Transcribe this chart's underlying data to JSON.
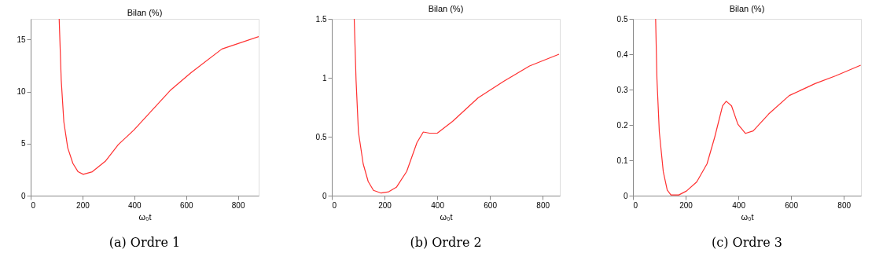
{
  "chart_data": [
    {
      "type": "line",
      "title": "Bilan (%)",
      "xlabel": "ω₀t",
      "color": "#ff3030",
      "xlim": [
        0,
        880
      ],
      "ylim": [
        0,
        17
      ],
      "xticks": [
        0,
        200,
        400,
        600,
        800
      ],
      "yticks": [
        0,
        5,
        10,
        15
      ],
      "annotations": [
        "(a) Ordre 1"
      ],
      "x": [
        110,
        118,
        128,
        143,
        163,
        183,
        203,
        238,
        288,
        338,
        398,
        538,
        618,
        738,
        880
      ],
      "values": [
        17,
        11.1,
        7.1,
        4.6,
        3.1,
        2.3,
        2.05,
        2.3,
        3.3,
        4.9,
        6.3,
        10.1,
        11.8,
        14.1,
        15.3
      ]
    },
    {
      "type": "line",
      "title": "Bilan (%)",
      "xlabel": "ω₀t",
      "color": "#ff3030",
      "xlim": [
        0,
        865
      ],
      "ylim": [
        0,
        1.5
      ],
      "xticks": [
        0,
        200,
        400,
        600,
        800
      ],
      "yticks": [
        0,
        0.5,
        1,
        1.5
      ],
      "annotations": [
        "(b) Ordre 2"
      ],
      "x": [
        85,
        92,
        101,
        119,
        138,
        158,
        187,
        216,
        245,
        284,
        323,
        347,
        371,
        400,
        458,
        555,
        652,
        750,
        862
      ],
      "values": [
        1.5,
        0.98,
        0.54,
        0.27,
        0.12,
        0.045,
        0.022,
        0.033,
        0.071,
        0.205,
        0.45,
        0.54,
        0.53,
        0.53,
        0.63,
        0.83,
        0.97,
        1.1,
        1.2
      ]
    },
    {
      "type": "line",
      "title": "Bilan (%)",
      "xlabel": "ω₀t",
      "color": "#ff3030",
      "xlim": [
        0,
        865
      ],
      "ylim": [
        0,
        0.5
      ],
      "xticks": [
        0,
        200,
        400,
        600,
        800
      ],
      "yticks": [
        0,
        0.1,
        0.2,
        0.3,
        0.4,
        0.5
      ],
      "annotations": [
        "(c) Ordre 3"
      ],
      "x": [
        86,
        91,
        100,
        115,
        130,
        144,
        174,
        203,
        242,
        281,
        310,
        340,
        354,
        374,
        398,
        427,
        456,
        515,
        593,
        691,
        769,
        864
      ],
      "values": [
        0.5,
        0.33,
        0.18,
        0.068,
        0.016,
        0.002,
        0.002,
        0.013,
        0.039,
        0.09,
        0.165,
        0.254,
        0.267,
        0.254,
        0.202,
        0.176,
        0.183,
        0.231,
        0.283,
        0.317,
        0.339,
        0.369
      ]
    }
  ]
}
